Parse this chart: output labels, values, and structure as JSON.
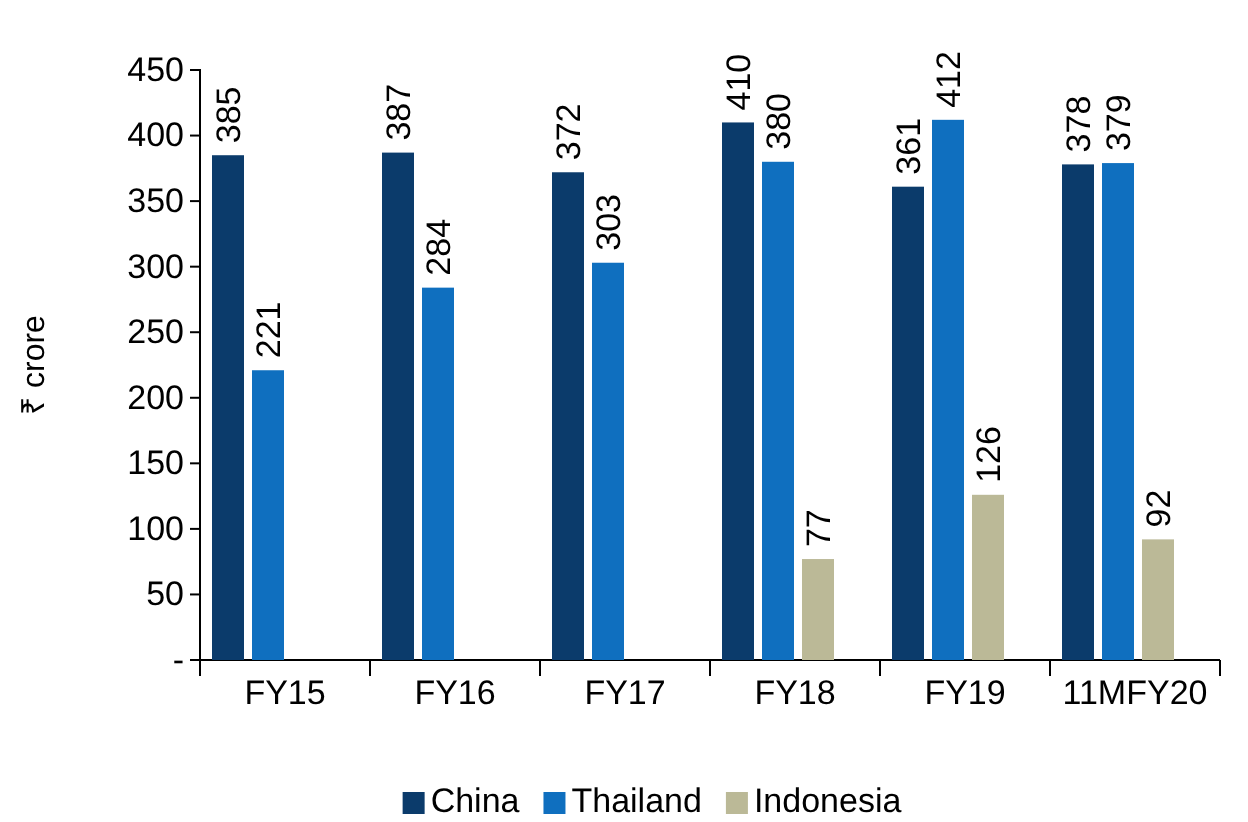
{
  "chart_data": {
    "type": "bar",
    "ylabel": "₹ crore",
    "categories": [
      "FY15",
      "FY16",
      "FY17",
      "FY18",
      "FY19",
      "11MFY20"
    ],
    "series": [
      {
        "name": "China",
        "color": "#0b3b6b",
        "values": [
          385,
          387,
          372,
          410,
          361,
          378
        ]
      },
      {
        "name": "Thailand",
        "color": "#0f6fbf",
        "values": [
          221,
          284,
          303,
          380,
          412,
          379
        ]
      },
      {
        "name": "Indonesia",
        "color": "#bbb997",
        "values": [
          null,
          null,
          null,
          77,
          126,
          92
        ]
      }
    ],
    "ylim": [
      0,
      450
    ],
    "yticks": [
      {
        "value": 0,
        "label": "-"
      },
      50,
      100,
      150,
      200,
      250,
      300,
      350,
      400,
      450
    ],
    "grid": false,
    "legend": "bottom",
    "data_labels": true
  }
}
